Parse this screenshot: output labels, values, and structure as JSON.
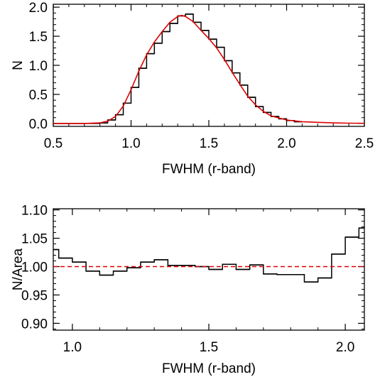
{
  "chart_data": [
    {
      "type": "line",
      "xlabel": "FWHM (r-band)",
      "ylabel": "N",
      "xlim": [
        0.5,
        2.5
      ],
      "ylim": [
        -0.05,
        2.05
      ],
      "xticks": [
        "0.5",
        "1.0",
        "1.5",
        "2.0",
        "2.5"
      ],
      "yticks": [
        "0.0",
        "0.5",
        "1.0",
        "1.5",
        "2.0"
      ],
      "grid": false,
      "series": [
        {
          "style": "histogram-step",
          "color": "#000000",
          "bin_edges": [
            0.8,
            0.85,
            0.9,
            0.95,
            1.0,
            1.05,
            1.1,
            1.15,
            1.2,
            1.25,
            1.3,
            1.35,
            1.4,
            1.45,
            1.5,
            1.55,
            1.6,
            1.65,
            1.7,
            1.75,
            1.8,
            1.85,
            1.9,
            1.95,
            2.0,
            2.05,
            2.1
          ],
          "values": [
            0.01,
            0.06,
            0.15,
            0.35,
            0.62,
            0.95,
            1.2,
            1.38,
            1.58,
            1.72,
            1.85,
            1.88,
            1.74,
            1.6,
            1.45,
            1.31,
            1.08,
            0.87,
            0.66,
            0.45,
            0.29,
            0.19,
            0.12,
            0.08,
            0.05,
            0.03
          ]
        },
        {
          "style": "smooth-curve",
          "color": "#e00000",
          "x": [
            0.5,
            0.7,
            0.8,
            0.85,
            0.9,
            0.95,
            1.0,
            1.05,
            1.1,
            1.15,
            1.2,
            1.25,
            1.3,
            1.325,
            1.35,
            1.4,
            1.45,
            1.5,
            1.55,
            1.6,
            1.65,
            1.7,
            1.75,
            1.8,
            1.85,
            1.9,
            2.0,
            2.1,
            2.2,
            2.3,
            2.4,
            2.5
          ],
          "y": [
            0.0,
            0.0,
            0.01,
            0.04,
            0.12,
            0.3,
            0.58,
            0.9,
            1.18,
            1.4,
            1.58,
            1.74,
            1.84,
            1.86,
            1.84,
            1.75,
            1.6,
            1.46,
            1.3,
            1.1,
            0.88,
            0.67,
            0.47,
            0.32,
            0.21,
            0.13,
            0.06,
            0.03,
            0.02,
            0.01,
            0.005,
            0.003
          ]
        }
      ]
    },
    {
      "type": "line",
      "xlabel": "FWHM (r-band)",
      "ylabel": "N/Area",
      "xlim": [
        0.93,
        2.07
      ],
      "ylim": [
        0.888,
        1.102
      ],
      "xticks": [
        "1.0",
        "1.5",
        "2.0"
      ],
      "yticks": [
        "0.90",
        "0.95",
        "1.00",
        "1.05",
        "1.10"
      ],
      "grid": false,
      "series": [
        {
          "style": "histogram-step",
          "color": "#000000",
          "bin_edges": [
            0.93,
            0.95,
            1.0,
            1.05,
            1.1,
            1.15,
            1.2,
            1.25,
            1.3,
            1.35,
            1.4,
            1.45,
            1.5,
            1.55,
            1.6,
            1.65,
            1.7,
            1.75,
            1.8,
            1.85,
            1.9,
            1.95,
            2.0,
            2.05,
            2.07
          ],
          "values": [
            1.03,
            1.015,
            1.008,
            0.992,
            0.985,
            0.992,
            0.998,
            1.008,
            1.012,
            1.002,
            1.002,
            1.0,
            0.995,
            1.004,
            0.995,
            1.003,
            0.987,
            0.986,
            0.986,
            0.973,
            0.98,
            1.022,
            1.052,
            1.068
          ]
        },
        {
          "style": "dashed-reference",
          "color": "#e00000",
          "y": 1.0
        }
      ]
    }
  ]
}
